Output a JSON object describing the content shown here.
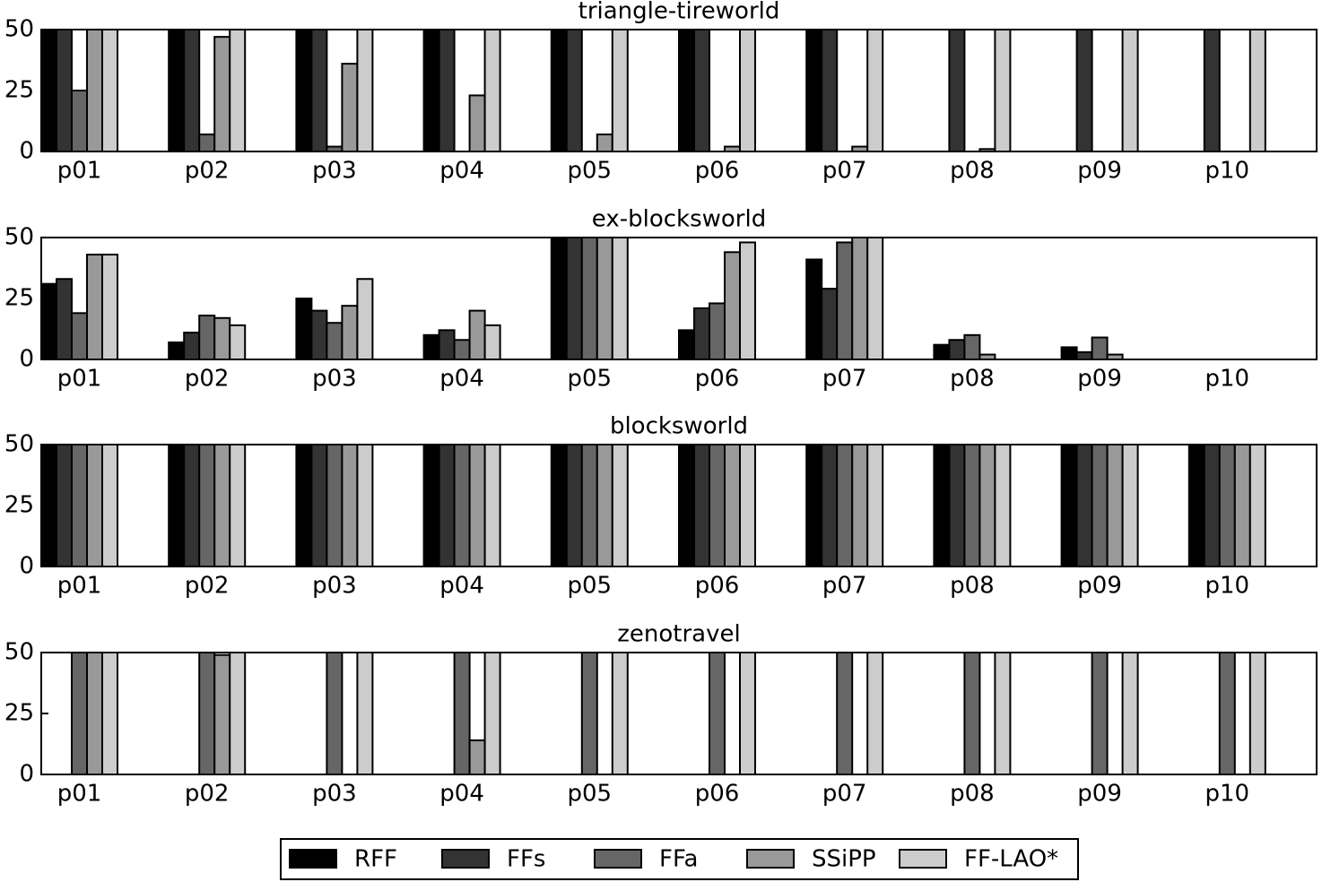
{
  "legend": {
    "entries": [
      {
        "name": "RFF",
        "color": "#000000"
      },
      {
        "name": "FFs",
        "color": "#333333"
      },
      {
        "name": "FFa",
        "color": "#666666"
      },
      {
        "name": "SSiPP",
        "color": "#999999"
      },
      {
        "name": "FF-LAO*",
        "color": "#cccccc"
      }
    ]
  },
  "chart_data": [
    {
      "type": "bar",
      "title": "triangle-tireworld",
      "categories": [
        "p01",
        "p02",
        "p03",
        "p04",
        "p05",
        "p06",
        "p07",
        "p08",
        "p09",
        "p10"
      ],
      "series": [
        {
          "values": [
            50,
            50,
            50,
            50,
            50,
            50,
            50,
            0,
            0,
            0
          ]
        },
        {
          "values": [
            50,
            50,
            50,
            50,
            50,
            50,
            50,
            50,
            50,
            50
          ]
        },
        {
          "values": [
            25,
            7,
            2,
            0,
            0,
            0,
            0,
            0,
            0,
            0
          ]
        },
        {
          "values": [
            50,
            47,
            36,
            23,
            7,
            2,
            2,
            1,
            0,
            0
          ]
        },
        {
          "values": [
            50,
            50,
            50,
            50,
            50,
            50,
            50,
            50,
            50,
            50
          ]
        }
      ],
      "ylim": [
        0,
        50
      ],
      "yticks": [
        0,
        25,
        50
      ]
    },
    {
      "type": "bar",
      "title": "ex-blocksworld",
      "categories": [
        "p01",
        "p02",
        "p03",
        "p04",
        "p05",
        "p06",
        "p07",
        "p08",
        "p09",
        "p10"
      ],
      "series": [
        {
          "values": [
            31,
            7,
            25,
            10,
            50,
            12,
            41,
            6,
            5,
            0
          ]
        },
        {
          "values": [
            33,
            11,
            20,
            12,
            50,
            21,
            29,
            8,
            3,
            0
          ]
        },
        {
          "values": [
            19,
            18,
            15,
            8,
            50,
            23,
            48,
            10,
            9,
            0
          ]
        },
        {
          "values": [
            43,
            17,
            22,
            20,
            50,
            44,
            50,
            2,
            2,
            0
          ]
        },
        {
          "values": [
            43,
            14,
            33,
            14,
            50,
            48,
            50,
            0,
            0,
            0
          ]
        }
      ],
      "ylim": [
        0,
        50
      ],
      "yticks": [
        0,
        25,
        50
      ]
    },
    {
      "type": "bar",
      "title": "blocksworld",
      "categories": [
        "p01",
        "p02",
        "p03",
        "p04",
        "p05",
        "p06",
        "p07",
        "p08",
        "p09",
        "p10"
      ],
      "series": [
        {
          "values": [
            50,
            50,
            50,
            50,
            50,
            50,
            50,
            50,
            50,
            50
          ]
        },
        {
          "values": [
            50,
            50,
            50,
            50,
            50,
            50,
            50,
            50,
            50,
            50
          ]
        },
        {
          "values": [
            50,
            50,
            50,
            50,
            50,
            50,
            50,
            50,
            50,
            50
          ]
        },
        {
          "values": [
            50,
            50,
            50,
            50,
            50,
            50,
            50,
            50,
            50,
            50
          ]
        },
        {
          "values": [
            50,
            50,
            50,
            50,
            50,
            50,
            50,
            50,
            50,
            50
          ]
        }
      ],
      "ylim": [
        0,
        50
      ],
      "yticks": [
        0,
        25,
        50
      ]
    },
    {
      "type": "bar",
      "title": "zenotravel",
      "categories": [
        "p01",
        "p02",
        "p03",
        "p04",
        "p05",
        "p06",
        "p07",
        "p08",
        "p09",
        "p10"
      ],
      "series": [
        {
          "values": [
            0,
            0,
            0,
            0,
            0,
            0,
            0,
            0,
            0,
            0
          ]
        },
        {
          "values": [
            0,
            0,
            0,
            0,
            0,
            0,
            0,
            0,
            0,
            0
          ]
        },
        {
          "values": [
            50,
            50,
            50,
            50,
            50,
            50,
            50,
            50,
            50,
            50
          ]
        },
        {
          "values": [
            50,
            49,
            0,
            14,
            0,
            0,
            0,
            0,
            0,
            0
          ]
        },
        {
          "values": [
            50,
            50,
            50,
            50,
            50,
            50,
            50,
            50,
            50,
            50
          ]
        }
      ],
      "ylim": [
        0,
        50
      ],
      "yticks": [
        0,
        25,
        50
      ]
    }
  ]
}
